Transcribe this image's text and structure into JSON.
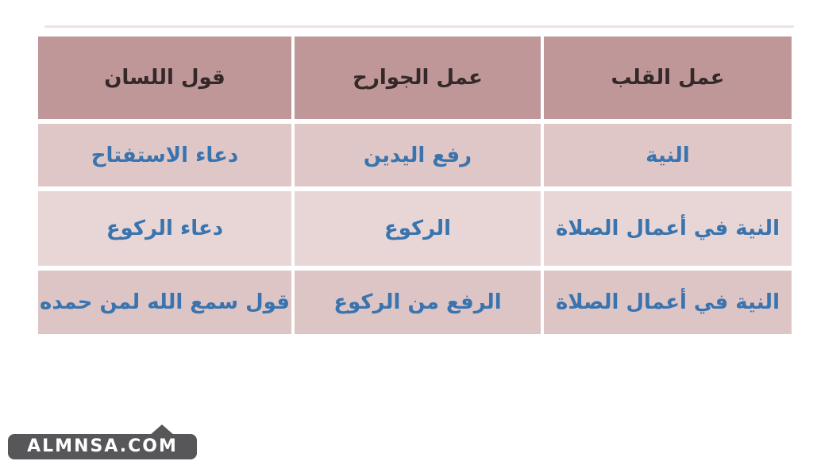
{
  "table": {
    "columns": [
      {
        "header": "عمل القلب"
      },
      {
        "header": "عمل الجوارح"
      },
      {
        "header": "قول اللسان"
      }
    ],
    "rows": [
      {
        "cells": [
          "النية",
          "رفع اليدين",
          "دعاء الاستفتاح"
        ]
      },
      {
        "cells": [
          "النية في أعمال الصلاة",
          "الركوع",
          "دعاء الركوع"
        ]
      },
      {
        "cells": [
          "النية في أعمال الصلاة",
          "الرفع من الركوع",
          "قول سمع الله لمن حمده"
        ]
      }
    ]
  },
  "watermark": {
    "text": "ALMNSA.COM"
  },
  "colors": {
    "header_bg": "#bf9799",
    "row1_bg": "#dfc7c8",
    "row2_bg": "#e8d6d6",
    "row3_bg": "#ddc5c6",
    "header_text": "#342829",
    "body_text": "#3a74ae",
    "watermark_bg": "#57575a",
    "watermark_text": "#ffffff",
    "faint_line": "#ecdcdc",
    "canvas_bg": "#ffffff"
  }
}
